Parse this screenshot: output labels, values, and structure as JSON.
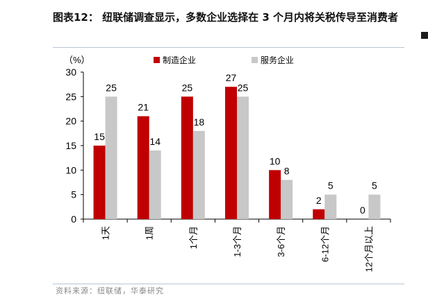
{
  "title": "图表12： 纽联储调查显示，多数企业选择在 3 个月内将关税传导至消费者",
  "source": "资料来源：纽联储，华泰研究",
  "chart_data": {
    "type": "bar",
    "unit_label": "（%）",
    "ylim": [
      0,
      30
    ],
    "yticks": [
      0,
      5,
      10,
      15,
      20,
      25,
      30
    ],
    "categories": [
      "1天",
      "1周",
      "1个月",
      "1-3个月",
      "3-6个月",
      "6-12个月",
      "12个月以上"
    ],
    "series": [
      {
        "name": "制造企业",
        "color": "#c00000",
        "values": [
          15,
          21,
          25,
          27,
          10,
          2,
          0
        ]
      },
      {
        "name": "服务企业",
        "color": "#c8c8c8",
        "values": [
          25,
          14,
          18,
          25,
          8,
          5,
          5
        ]
      }
    ],
    "grid": false,
    "legend_position": "top-center"
  }
}
